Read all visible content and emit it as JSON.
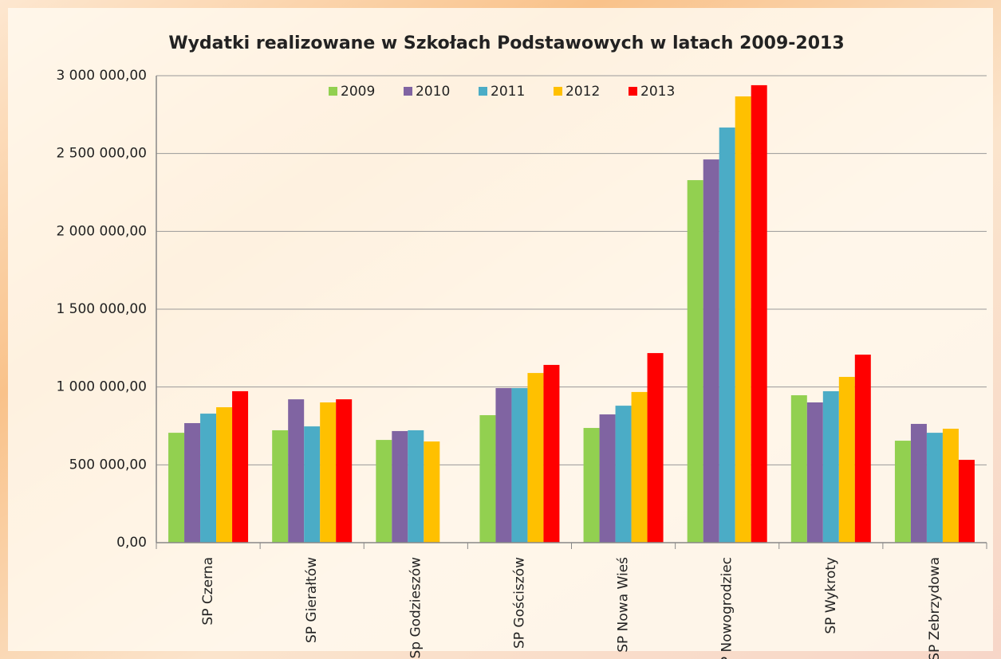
{
  "chart_data": {
    "type": "bar",
    "title": "Wydatki realizowane w Szkołach Podstawowych w latach 2009-2013",
    "categories": [
      "SP Czerna",
      "SP Gierałtów",
      "Sp Godzieszów",
      "SP Gościszów",
      "SP Nowa Wieś",
      "SP Nowogrodziec",
      "SP Wykroty",
      "SP Zebrzydowa"
    ],
    "series": [
      {
        "name": "2009",
        "color": "#92d050",
        "values": [
          706000,
          722000,
          660000,
          819000,
          737000,
          2329000,
          947000,
          655000
        ]
      },
      {
        "name": "2010",
        "color": "#8064a2",
        "values": [
          768000,
          921000,
          717000,
          993000,
          824000,
          2462000,
          901000,
          763000
        ]
      },
      {
        "name": "2011",
        "color": "#4bacc6",
        "values": [
          829000,
          747000,
          722000,
          993000,
          880000,
          2667000,
          973000,
          706000
        ]
      },
      {
        "name": "2012",
        "color": "#ffc000",
        "values": [
          870000,
          901000,
          650000,
          1090000,
          968000,
          2867000,
          1065000,
          732000
        ]
      },
      {
        "name": "2013",
        "color": "#ff0000",
        "values": [
          973000,
          921000,
          null,
          1142000,
          1218000,
          2939000,
          1208000,
          532000
        ]
      }
    ],
    "ylim": [
      0,
      3000000
    ],
    "yticks": [
      {
        "value": 0,
        "label": "0,00"
      },
      {
        "value": 500000,
        "label": "500 000,00"
      },
      {
        "value": 1000000,
        "label": "1 000 000,00"
      },
      {
        "value": 1500000,
        "label": "1 500 000,00"
      },
      {
        "value": 2000000,
        "label": "2 000 000,00"
      },
      {
        "value": 2500000,
        "label": "2 500 000,00"
      },
      {
        "value": 3000000,
        "label": "3 000 000,00"
      }
    ],
    "grid": true,
    "legend": "top"
  }
}
